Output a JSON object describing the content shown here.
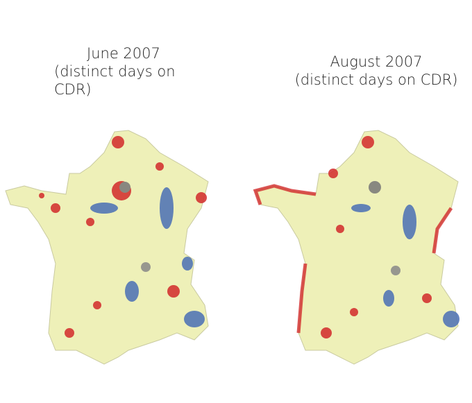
{
  "maps": [
    {
      "title": [
        "June 2007",
        "(distinct days on",
        "CDR)"
      ]
    },
    {
      "title": [
        "August 2007",
        "(distinct days on CDR)"
      ]
    }
  ]
}
